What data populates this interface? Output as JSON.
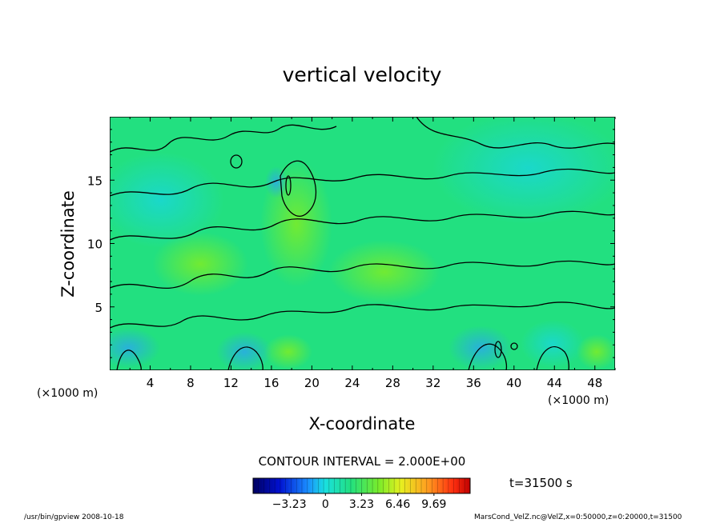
{
  "chart_data": {
    "type": "heatmap",
    "title": "vertical velocity",
    "xlabel": "X-coordinate",
    "ylabel": "Z-coordinate",
    "x_unit_left": "(×1000 m)",
    "x_unit_right": "(×1000 m)",
    "xlim": [
      0,
      50
    ],
    "ylim": [
      0,
      20
    ],
    "x_ticks": [
      4,
      8,
      12,
      16,
      20,
      24,
      28,
      32,
      36,
      40,
      44,
      48
    ],
    "y_ticks": [
      5,
      10,
      15
    ],
    "contour_label": "CONTOUR INTERVAL = 2.000E+00",
    "contour_interval": 2.0,
    "time_label": "t=31500 s",
    "colorbar": {
      "min": -6.46,
      "max": 12.92,
      "tick_values": [
        -3.23,
        0,
        3.23,
        6.46,
        9.69
      ],
      "tick_labels": [
        "-3.23",
        "0",
        "3.23",
        "6.46",
        "9.69"
      ]
    },
    "colors": {
      "field_base": "#22e080",
      "field_cool": "#19d7d7",
      "field_warm": "#7aec2a",
      "contour": "#000000"
    }
  },
  "footer": {
    "left": "/usr/bin/gpview   2008-10-18",
    "right": "MarsCond_VelZ.nc@VelZ,x=0:50000,z=0:20000,t=31500"
  }
}
